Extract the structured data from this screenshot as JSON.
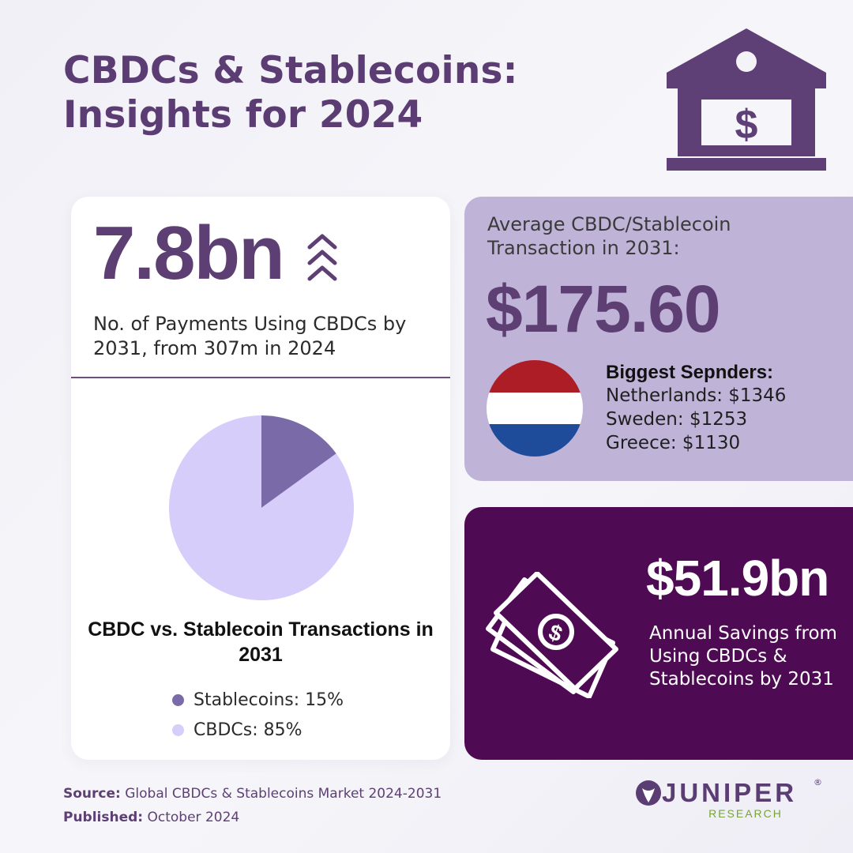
{
  "header": {
    "title_line1": "CBDCs & Stablecoins:",
    "title_line2": "Insights for 2024",
    "icon": "bank-dollar-icon"
  },
  "payments_card": {
    "value": "7.8bn",
    "icon": "chevrons-up-icon",
    "description": "No. of Payments Using CBDCs by 2031, from 307m in 2024"
  },
  "chart_data": {
    "type": "pie",
    "title": "CBDC vs. Stablecoin Transactions in 2031",
    "slices": [
      {
        "label": "Stablecoins: 15%",
        "name": "Stablecoins",
        "value": 15,
        "color": "#7b6aa8"
      },
      {
        "label": "CBDCs: 85%",
        "name": "CBDCs",
        "value": 85,
        "color": "#d6cdfa"
      }
    ]
  },
  "average_card": {
    "label": "Average CBDC/Stablecoin Transaction in 2031:",
    "value": "$175.60",
    "flag_icon": "netherlands-flag-icon",
    "flag_colors": [
      "#ad1d25",
      "#ffffff",
      "#1e4b9a"
    ],
    "spenders_title": "Biggest Sepnders:",
    "spenders": [
      "Netherlands: $1346",
      "Sweden: $1253",
      "Greece: $1130"
    ]
  },
  "savings_card": {
    "icon": "money-bills-icon",
    "value": "$51.9bn",
    "description": "Annual Savings from Using CBDCs & Stablecoins by 2031"
  },
  "footer": {
    "source_label": "Source:",
    "source_text": "Global CBDCs & Stablecoins Market 2024-2031",
    "published_label": "Published:",
    "published_text": "October 2024"
  },
  "logo": {
    "name": "JUNIPER",
    "registered": "®",
    "subtitle": "RESEARCH"
  },
  "colors": {
    "brand_purple": "#5d3f74",
    "lavender_card": "#bfb4d8",
    "dark_purple_card": "#4f0a54",
    "logo_green": "#77a33a"
  }
}
